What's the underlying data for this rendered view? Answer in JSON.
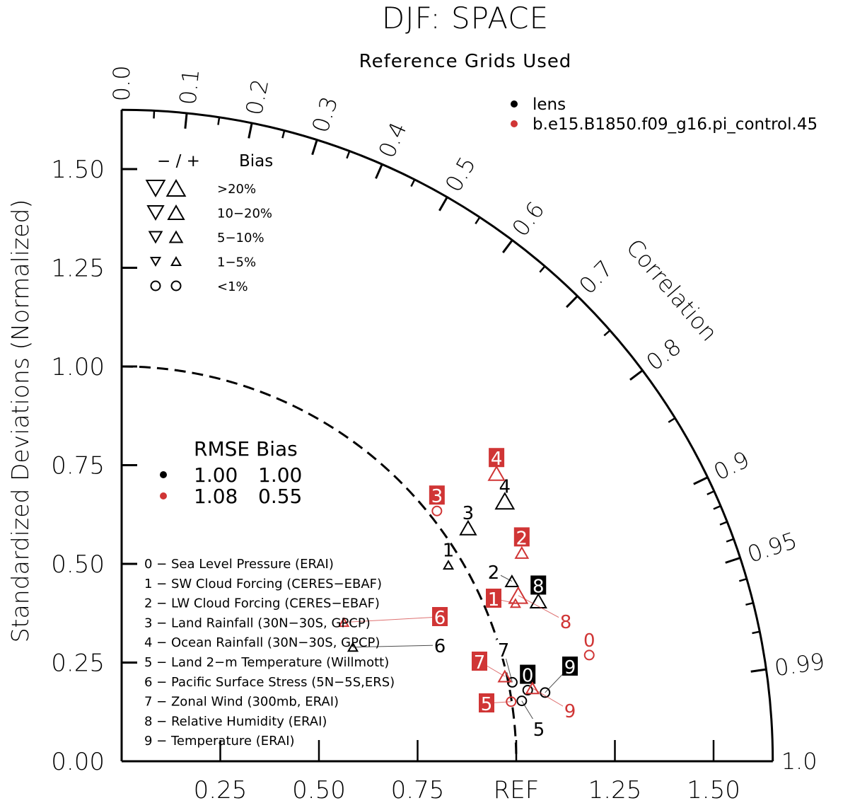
{
  "chart_data": {
    "type": "taylor",
    "title": "DJF: SPACE",
    "subtitle": "Reference Grids Used",
    "ylabel": "Standardized Deviations (Normalized)",
    "arc_label": "Correlation",
    "std_range": [
      0,
      1.65
    ],
    "y_ticks": [
      "0.00",
      "0.25",
      "0.50",
      "0.75",
      "1.00",
      "1.25",
      "1.50"
    ],
    "x_ticks": [
      "0.25",
      "0.50",
      "0.75",
      "REF",
      "1.25",
      "1.50"
    ],
    "corr_labels": [
      "0.0",
      "0.1",
      "0.2",
      "0.3",
      "0.4",
      "0.5",
      "0.6",
      "0.7",
      "0.8",
      "0.9",
      "0.95",
      "0.99",
      "1.0"
    ],
    "corr_values": [
      0.0,
      0.1,
      0.2,
      0.3,
      0.4,
      0.5,
      0.6,
      0.7,
      0.8,
      0.9,
      0.95,
      0.99,
      1.0
    ],
    "ref_circle_std": 1.0,
    "series": [
      {
        "name": "lens",
        "color": "#000000",
        "rmse": "1.00",
        "bias": "1.00",
        "points": [
          {
            "label": "1",
            "x": 0.828,
            "y": 0.497,
            "marker": "up",
            "bias_cat": "1-5%",
            "box": false
          },
          {
            "label": "2",
            "x": 0.989,
            "y": 0.456,
            "marker": "up",
            "bias_cat": "5-10%",
            "box": false
          },
          {
            "label": "3",
            "x": 0.878,
            "y": 0.591,
            "marker": "up",
            "bias_cat": "10-20%",
            "box": false
          },
          {
            "label": "4",
            "x": 0.971,
            "y": 0.659,
            "marker": "up",
            "bias_cat": ">20%",
            "box": false
          },
          {
            "label": "5",
            "x": 1.014,
            "y": 0.153,
            "marker": "circle",
            "bias_cat": "<1%",
            "box": false
          },
          {
            "label": "6",
            "x": 0.586,
            "y": 0.289,
            "marker": "up",
            "bias_cat": "1-5%",
            "box": false
          },
          {
            "label": "7",
            "x": 0.99,
            "y": 0.2,
            "marker": "circle",
            "bias_cat": "<1%",
            "box": false
          },
          {
            "label": "8",
            "x": 1.056,
            "y": 0.406,
            "marker": "up",
            "bias_cat": "10-20%",
            "box": true
          },
          {
            "label": "0",
            "x": 1.029,
            "y": 0.18,
            "marker": "circle",
            "bias_cat": "<1%",
            "box": true
          },
          {
            "label": "9",
            "x": 1.073,
            "y": 0.174,
            "marker": "circle",
            "bias_cat": "<1%",
            "box": true
          }
        ]
      },
      {
        "name": "b.e15.B1850.f09_g16.pi_control.45",
        "color": "#d03535",
        "rmse": "1.08",
        "bias": "0.55",
        "points": [
          {
            "label": "0",
            "x": 1.185,
            "y": 0.269,
            "marker": "circle",
            "bias_cat": "<1%",
            "box": false
          },
          {
            "label": "1",
            "x": 0.998,
            "y": 0.4,
            "marker": "up",
            "bias_cat": "1-5%",
            "box": true
          },
          {
            "label": "2",
            "x": 1.014,
            "y": 0.528,
            "marker": "up",
            "bias_cat": "5-10%",
            "box": true
          },
          {
            "label": "3",
            "x": 0.799,
            "y": 0.634,
            "marker": "circle",
            "bias_cat": "<1%",
            "box": true
          },
          {
            "label": "4",
            "x": 0.95,
            "y": 0.729,
            "marker": "up",
            "bias_cat": "10-20%",
            "box": true
          },
          {
            "label": "5",
            "x": 0.987,
            "y": 0.151,
            "marker": "circle",
            "bias_cat": "<1%",
            "box": true
          },
          {
            "label": "6",
            "x": 0.563,
            "y": 0.352,
            "marker": "up",
            "bias_cat": "1-5%",
            "box": true
          },
          {
            "label": "7",
            "x": 0.971,
            "y": 0.215,
            "marker": "up",
            "bias_cat": "5-10%",
            "box": true
          },
          {
            "label": "8",
            "x": 1.005,
            "y": 0.42,
            "marker": "up",
            "bias_cat": ">20%",
            "box": false
          },
          {
            "label": "9",
            "x": 1.041,
            "y": 0.185,
            "marker": "up",
            "bias_cat": "5-10%",
            "box": false
          }
        ]
      }
    ],
    "bias_legend": {
      "header_sign": "− / +",
      "header": "Bias",
      "categories": [
        ">20%",
        "10−20%",
        "5−10%",
        "1−5%",
        "<1%"
      ]
    },
    "rmse_legend": {
      "header": "RMSE Bias"
    },
    "variables": [
      "0 − Sea Level Pressure (ERAI)",
      "1 − SW Cloud Forcing (CERES−EBAF)",
      "2 − LW Cloud Forcing (CERES−EBAF)",
      "3 − Land Rainfall (30N−30S, GPCP)",
      "4 − Ocean Rainfall (30N−30S, GPCP)",
      "5 − Land 2−m Temperature (Willmott)",
      "6 − Pacific Surface Stress (5N−5S,ERS)",
      "7 − Zonal Wind (300mb, ERAI)",
      "8 − Relative Humidity (ERAI)",
      "9 − Temperature (ERAI)"
    ]
  }
}
